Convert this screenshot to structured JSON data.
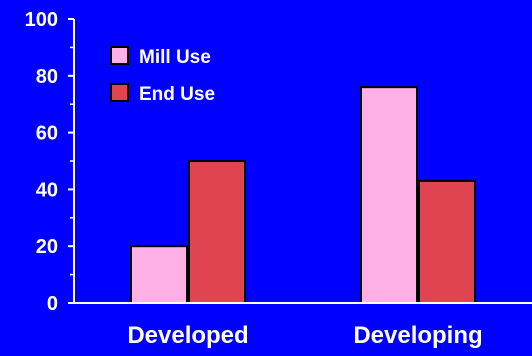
{
  "chart_data": {
    "type": "bar",
    "categories": [
      "Developed",
      "Developing"
    ],
    "series": [
      {
        "name": "Mill Use",
        "values": [
          20,
          76
        ],
        "color": "#ffb0e6"
      },
      {
        "name": "End Use",
        "values": [
          50,
          43
        ],
        "color": "#e04450"
      }
    ],
    "ylim": [
      0,
      100
    ],
    "yticks": [
      "0",
      "20",
      "40",
      "60",
      "80",
      "100"
    ],
    "ytick_values": [
      0,
      20,
      40,
      60,
      80,
      100
    ],
    "legend_position": "top-left",
    "grid": false,
    "background_color": "#0000ff",
    "axis_color": "#ffffff",
    "text_color": "#ffffff"
  }
}
